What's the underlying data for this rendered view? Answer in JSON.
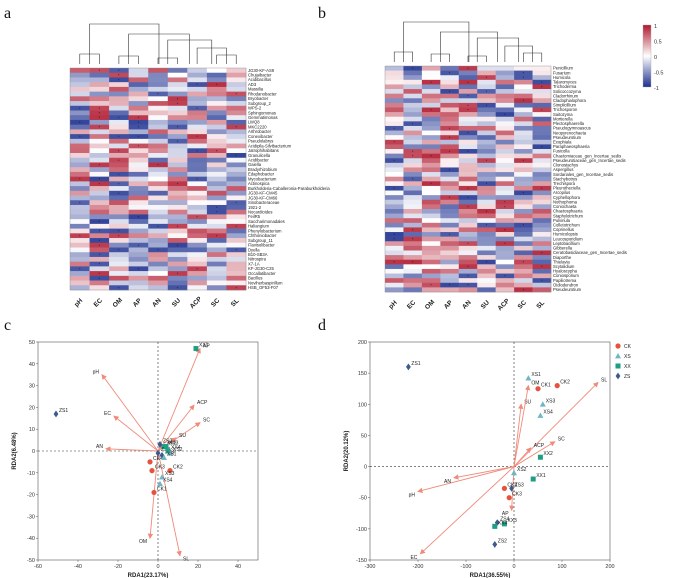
{
  "figure": {
    "panels": [
      "a",
      "b",
      "c",
      "d"
    ]
  },
  "colors": {
    "low": "#1c2f8f",
    "mid": "#ffffff",
    "high": "#b0172d",
    "arrow": "#f08a7a",
    "CK": "#e5533f",
    "XS": "#6fb7c7",
    "XX": "#1e9e84",
    "ZS": "#3c5a8a"
  },
  "chart_data": [
    {
      "type": "heatmap",
      "panel": "a",
      "columns": [
        "pH",
        "EC",
        "OM",
        "AP",
        "AN",
        "SU",
        "ACP",
        "SC",
        "SL"
      ],
      "rows": [
        "JG30-KF-AS9",
        "Chujaibacter",
        "Acidibacillus",
        "AD3",
        "Massilia",
        "Rhodanobacter",
        "Bryobacter",
        "Subgroup_2",
        "WPS-2",
        "Sphingomonas",
        "Gemmatimonas",
        "LWQ8",
        "MKC2220",
        "Arthrobacter",
        "Conexibacter",
        "Pseudolabrys",
        "Acidipila-Silvibacterium",
        "Jatrophihabitans",
        "Granulicella",
        "Acidibacter",
        "Gaiella",
        "Bradyrhizobium",
        "Edaphobacter",
        "Mycobacterium",
        "Actinospica",
        "Burkholderia-Caballeronia-Paraburkholderia",
        "JG30-KF-CM45",
        "JG30-KF-CM66",
        "Sinobacteraceae",
        "1921-2",
        "Nocardioides",
        "FeilR5",
        "Saccharimonadales",
        "Haliangium",
        "Phenylobacterium",
        "Chthoniobacter",
        "Subgroup_11",
        "Flavisolibacter",
        "Dyella",
        "B10-SB3A",
        "Nitrospira",
        "X7-1A",
        "KF-JG30-C25",
        "Occallatibacter",
        "Bacillus",
        "Noviherbaspirillum",
        "HSB_OF53-F07"
      ],
      "cbar": {
        "ticks": [
          "1",
          "0.5",
          "0",
          "-0.5",
          "-1"
        ],
        "range": [
          -1,
          1
        ]
      }
    },
    {
      "type": "heatmap",
      "panel": "b",
      "columns": [
        "pH",
        "EC",
        "OM",
        "AP",
        "AN",
        "SU",
        "ACP",
        "SC",
        "SL"
      ],
      "rows": [
        "Penicillium",
        "Fusarium",
        "Humicola",
        "Talaromyces",
        "Trichoderma",
        "Solicoccozyma",
        "Cladorrhinum",
        "Cladophialophora",
        "Simplicillium",
        "Trichosporon",
        "Saitozyma",
        "Mortierella",
        "Plectosphaerella",
        "Pseudogymnoascus",
        "Neopyrenochaeta",
        "Pseudeurotium",
        "Exophiala",
        "Paraphaeosphaeria",
        "Fusicolla",
        "Chaetomiaceae_gen_Incertae_sedis",
        "Pseudeurotiaceae_gen_Incertae_sedis",
        "Clonostachys",
        "Aspergillus",
        "Sordariales_gen_Incertae_sedis",
        "Stachybotrys",
        "Trechispora",
        "Pleurotheciella",
        "Arcopilus",
        "Cyphellophora",
        "Nothophoma",
        "Coniochaeta",
        "Chaetosphaeria",
        "Staphylotrichum",
        "Pulvinula",
        "Colletotrichum",
        "Coprinellus",
        "Humicolopsis",
        "Leucosporidium",
        "Leptobacillium",
        "Gibberella",
        "Ceratobasidiaceae_gen_Incertae_sedis",
        "Diaporthe",
        "Thielavia",
        "Scytalidium",
        "Hyaloscypha",
        "Coniosporium",
        "Papiliotrema",
        "Oidiodendron",
        "Pseudeurotium"
      ],
      "cbar": {
        "ticks": [
          "1",
          "0.5",
          "0",
          "-0.5",
          "-1"
        ],
        "range": [
          -1,
          1
        ]
      }
    },
    {
      "type": "scatter",
      "panel": "c",
      "xlabel": "RDA1(23.17%)",
      "ylabel": "RDA2(6.48%)",
      "xlim": [
        -60,
        50
      ],
      "ylim": [
        -50,
        50
      ],
      "xticks": [
        -60,
        -40,
        -20,
        0,
        20,
        40
      ],
      "yticks": [
        -50,
        -40,
        -30,
        -20,
        -10,
        0,
        10,
        20,
        30,
        40,
        50
      ],
      "arrows": [
        {
          "label": "pH",
          "x": -28,
          "y": 35
        },
        {
          "label": "EC",
          "x": -22,
          "y": 16
        },
        {
          "label": "AN",
          "x": -26,
          "y": 1
        },
        {
          "label": "OM",
          "x": -4,
          "y": -40
        },
        {
          "label": "SL",
          "x": 11,
          "y": -48
        },
        {
          "label": "AP",
          "x": 21,
          "y": 47
        },
        {
          "label": "ACP",
          "x": 18,
          "y": 21
        },
        {
          "label": "SC",
          "x": 21,
          "y": 13
        },
        {
          "label": "SU",
          "x": 9,
          "y": 6
        }
      ],
      "points": [
        {
          "label": "ZS1",
          "group": "ZS",
          "x": -51,
          "y": 17
        },
        {
          "label": "XX1",
          "group": "XX",
          "x": 19,
          "y": 47
        },
        {
          "label": "CK4",
          "group": "CK",
          "x": -4,
          "y": -5
        },
        {
          "label": "CK3",
          "group": "CK",
          "x": -3,
          "y": -9
        },
        {
          "label": "CK2",
          "group": "CK",
          "x": 6,
          "y": -9
        },
        {
          "label": "CK1",
          "group": "CK",
          "x": -2,
          "y": -19
        },
        {
          "label": "XS3",
          "group": "XS",
          "x": 2,
          "y": -12
        },
        {
          "label": "XX2",
          "group": "XX",
          "x": 3,
          "y": 2
        },
        {
          "label": "ZS2",
          "group": "ZS",
          "x": 1,
          "y": 3
        },
        {
          "label": "ZS3",
          "group": "ZS",
          "x": 2,
          "y": -2
        },
        {
          "label": "ZS4",
          "group": "ZS",
          "x": 0,
          "y": -1
        },
        {
          "label": "XX3",
          "group": "XX",
          "x": 4,
          "y": 2
        },
        {
          "label": "XX4",
          "group": "XX",
          "x": 5,
          "y": 0
        },
        {
          "label": "XS2",
          "group": "XS",
          "x": 6,
          "y": -1
        },
        {
          "label": "XS1",
          "group": "XS",
          "x": 3,
          "y": -3
        },
        {
          "label": "XS4",
          "group": "XS",
          "x": 1,
          "y": -15
        }
      ]
    },
    {
      "type": "scatter",
      "panel": "d",
      "xlabel": "RDA1(36.55%)",
      "ylabel": "RDA2(20.12%)",
      "xlim": [
        -300,
        200
      ],
      "ylim": [
        -150,
        200
      ],
      "xticks": [
        -300,
        -200,
        -100,
        0,
        100,
        200
      ],
      "yticks": [
        -150,
        -100,
        -50,
        0,
        50,
        100,
        150,
        200
      ],
      "legend": [
        {
          "label": "CK",
          "shape": "circle"
        },
        {
          "label": "XS",
          "shape": "triangle"
        },
        {
          "label": "XX",
          "shape": "square"
        },
        {
          "label": "ZS",
          "shape": "diamond"
        }
      ],
      "arrows": [
        {
          "label": "pH",
          "x": -200,
          "y": -40
        },
        {
          "label": "EC",
          "x": -195,
          "y": -140
        },
        {
          "label": "AN",
          "x": -125,
          "y": -18
        },
        {
          "label": "AP",
          "x": -5,
          "y": -70
        },
        {
          "label": "SL",
          "x": 175,
          "y": 135
        },
        {
          "label": "SU",
          "x": 15,
          "y": 100
        },
        {
          "label": "OM",
          "x": 30,
          "y": 130
        },
        {
          "label": "ACP",
          "x": 35,
          "y": 30
        },
        {
          "label": "SC",
          "x": 85,
          "y": 40
        }
      ],
      "points": [
        {
          "label": "ZS1",
          "group": "ZS",
          "x": -220,
          "y": 160
        },
        {
          "label": "CK2",
          "group": "CK",
          "x": 90,
          "y": 130
        },
        {
          "label": "XS1",
          "group": "XS",
          "x": 30,
          "y": 142
        },
        {
          "label": "CK1",
          "group": "CK",
          "x": 50,
          "y": 125
        },
        {
          "label": "XS3",
          "group": "XS",
          "x": 60,
          "y": 100
        },
        {
          "label": "XS4",
          "group": "XS",
          "x": 55,
          "y": 82
        },
        {
          "label": "XX2",
          "group": "XX",
          "x": 55,
          "y": 15
        },
        {
          "label": "XX1",
          "group": "XX",
          "x": 40,
          "y": -20
        },
        {
          "label": "XS2",
          "group": "XS",
          "x": 0,
          "y": -10
        },
        {
          "label": "ZS3",
          "group": "ZS",
          "x": -5,
          "y": -35
        },
        {
          "label": "CK4",
          "group": "CK",
          "x": -20,
          "y": -35
        },
        {
          "label": "CK3",
          "group": "CK",
          "x": -10,
          "y": -50
        },
        {
          "label": "ZS4",
          "group": "ZS",
          "x": -35,
          "y": -90
        },
        {
          "label": "XX3",
          "group": "XX",
          "x": -20,
          "y": -92
        },
        {
          "label": "XX4",
          "group": "XX",
          "x": -40,
          "y": -96
        },
        {
          "label": "ZS2",
          "group": "ZS",
          "x": -40,
          "y": -125
        }
      ]
    }
  ]
}
